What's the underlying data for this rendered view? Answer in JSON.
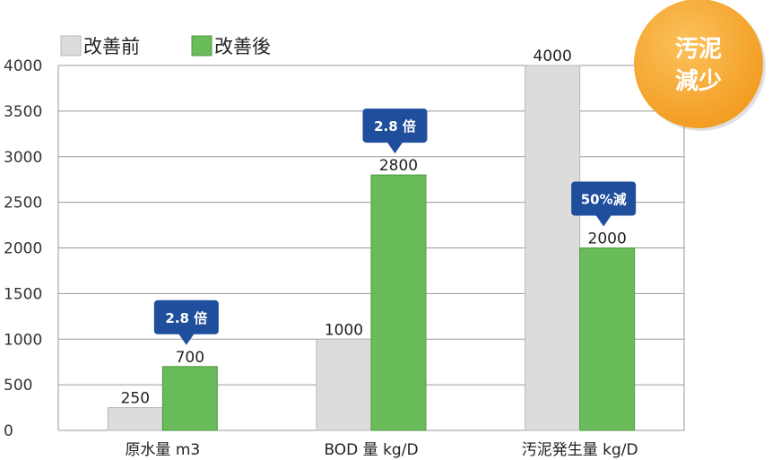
{
  "chart_data": {
    "type": "bar",
    "categories": [
      "原水量 m3",
      "BOD 量 kg/D",
      "汚泥発生量 kg/D"
    ],
    "series": [
      {
        "name": "改善前",
        "values": [
          250,
          1000,
          4000
        ],
        "color": "#dcdcdc"
      },
      {
        "name": "改善後",
        "values": [
          700,
          2800,
          2000
        ],
        "color": "#6abb5a"
      }
    ],
    "yticks": [
      0,
      500,
      1000,
      1500,
      2000,
      2500,
      3000,
      3500,
      4000
    ],
    "ylim": [
      0,
      4000
    ],
    "grid": true,
    "legend_position": "top-left",
    "value_labels": [
      [
        "250",
        "700"
      ],
      [
        "1000",
        "2800"
      ],
      [
        "4000",
        "2000"
      ]
    ],
    "annotations": [
      {
        "text": "2.8 倍",
        "category_index": 0,
        "series_index": 1
      },
      {
        "text": "2.8 倍",
        "category_index": 1,
        "series_index": 1
      },
      {
        "text": "50%減",
        "category_index": 2,
        "series_index": 1
      }
    ],
    "callout_color": "#1f4e9c"
  },
  "badge": {
    "line1": "汚泥",
    "line2": "減少",
    "color": "#f29a1e"
  }
}
